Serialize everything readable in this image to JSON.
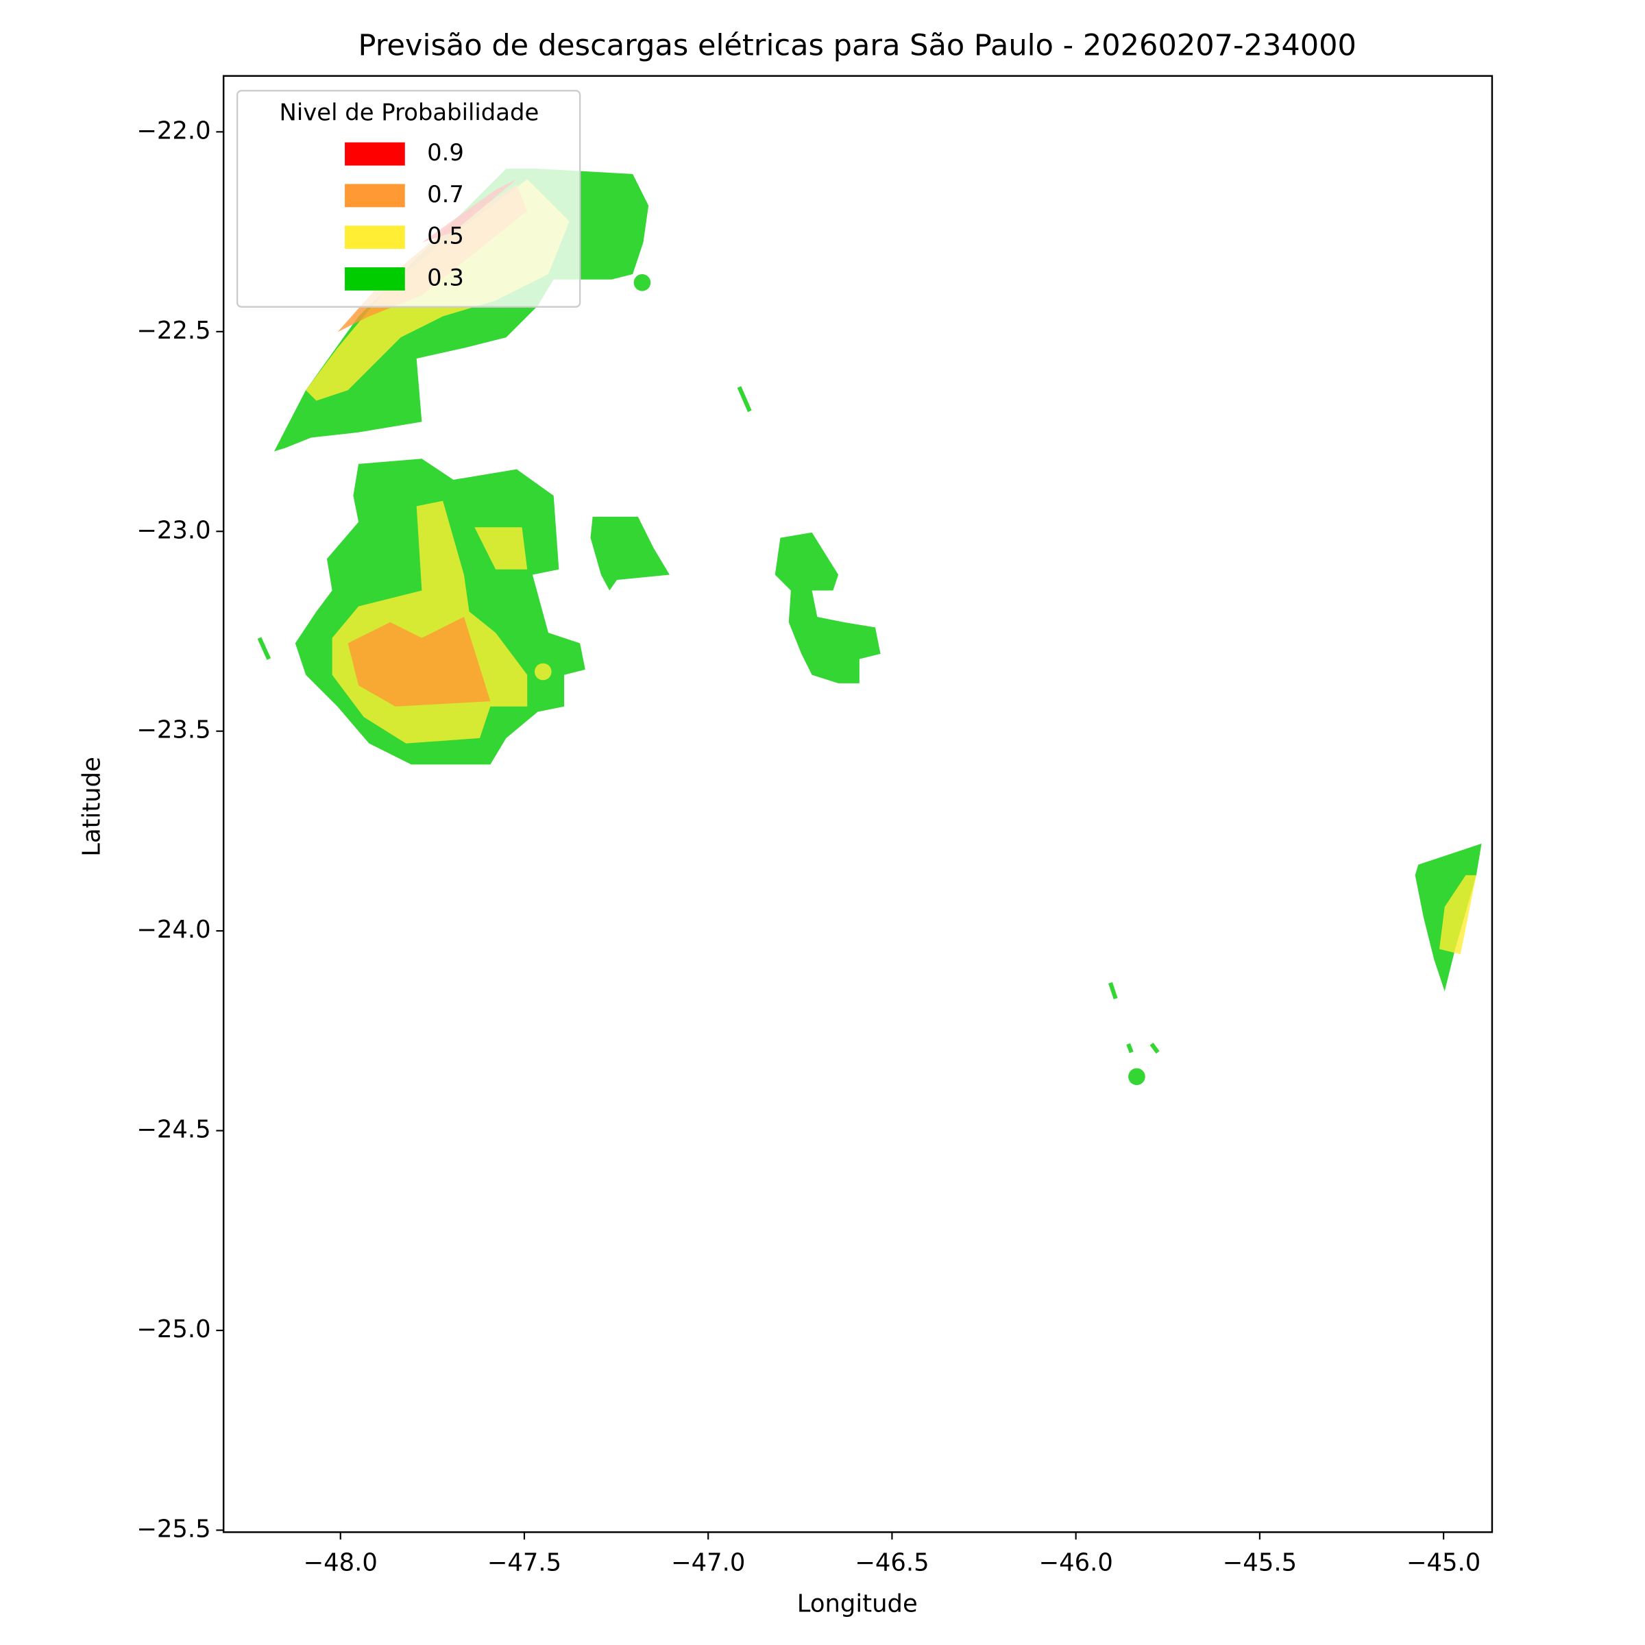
{
  "chart_data": {
    "type": "contour",
    "title": "Previsão de descargas elétricas para São Paulo - 20260207-234000",
    "x_label": "Longitude",
    "y_label": "Latitude",
    "legend_title": "Nivel de Probabilidade",
    "legend": "upper left",
    "series": [
      {
        "name": "0.9",
        "color": "#ff0000"
      },
      {
        "name": "0.7",
        "color": "#ff9933"
      },
      {
        "name": "0.5",
        "color": "#ffee33"
      },
      {
        "name": "0.3",
        "color": "#00cc00"
      }
    ],
    "xlim": [
      -48.318,
      -44.868
    ],
    "ylim": [
      -25.505,
      -21.86
    ],
    "xticks": [
      {
        "value": -48,
        "label": "−48.0"
      },
      {
        "value": -47.5,
        "label": "−47.5"
      },
      {
        "value": -47,
        "label": "−47.0"
      },
      {
        "value": -46.5,
        "label": "−46.5"
      },
      {
        "value": -46,
        "label": "−46.0"
      },
      {
        "value": -45.5,
        "label": "−45.5"
      },
      {
        "value": -45,
        "label": "−45.0"
      }
    ],
    "yticks": [
      {
        "value": -22,
        "label": "−22.0"
      },
      {
        "value": -22.5,
        "label": "−22.5"
      },
      {
        "value": -23,
        "label": "−23.0"
      },
      {
        "value": -23.5,
        "label": "−23.5"
      },
      {
        "value": -24,
        "label": "−24.0"
      },
      {
        "value": -24.5,
        "label": "−24.5"
      },
      {
        "value": -25,
        "label": "−25.0"
      },
      {
        "value": -25.5,
        "label": "−25.5"
      }
    ]
  }
}
